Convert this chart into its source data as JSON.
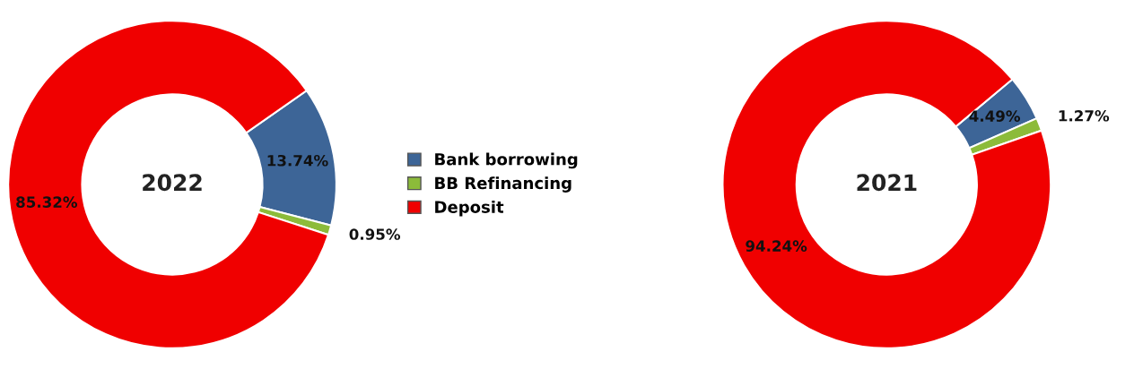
{
  "chart_data": [
    {
      "type": "donut",
      "categories": [
        "Bank borrowing",
        "BB Refinancing",
        "Deposit"
      ],
      "values": [
        13.74,
        0.95,
        85.32
      ],
      "value_labels": [
        "13.74%",
        "0.95%",
        "85.32%"
      ],
      "colors": [
        "#3d6597",
        "#8cbb3a",
        "#f00000"
      ],
      "annotations": [
        "2022"
      ],
      "legend": "right"
    },
    {
      "type": "donut",
      "categories": [
        null,
        null,
        null
      ],
      "values": [
        4.49,
        1.27,
        94.24
      ],
      "value_labels": [
        "4.49%",
        "1.27%",
        "94.24%"
      ],
      "colors": [
        "#3d6597",
        "#8cbb3a",
        "#f00000"
      ],
      "annotations": [
        "2021"
      ]
    }
  ]
}
